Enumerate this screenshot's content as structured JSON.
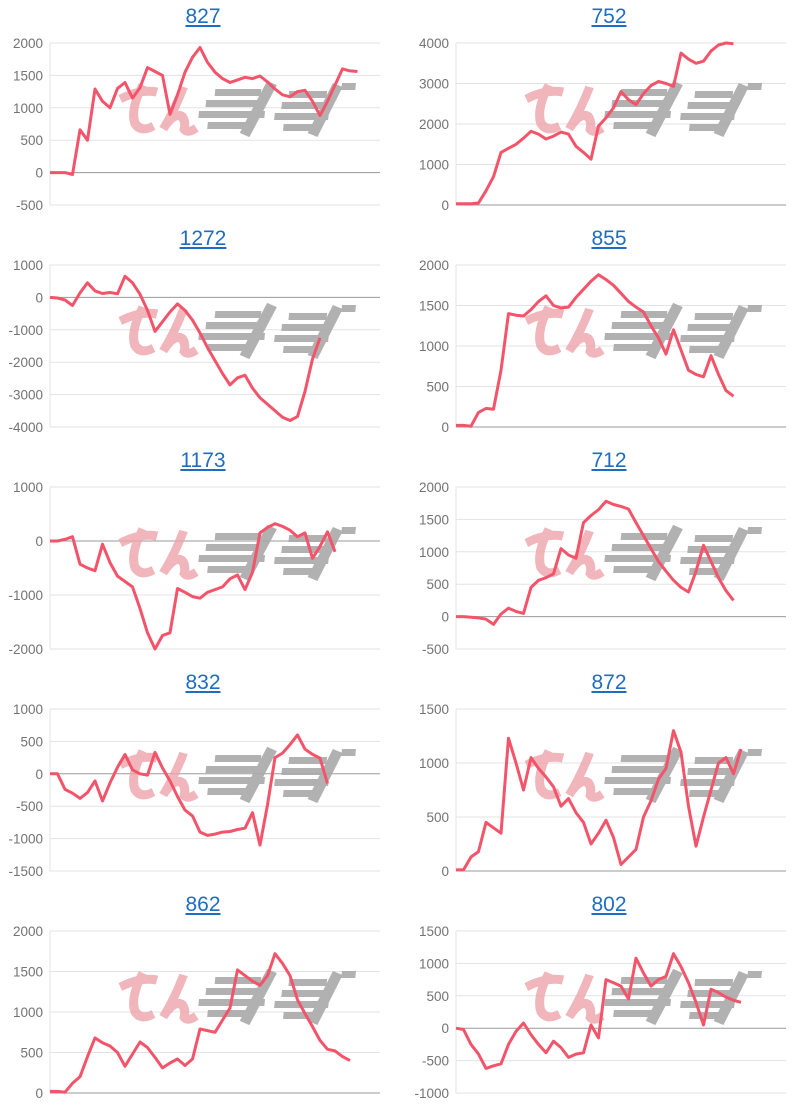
{
  "page": {
    "background": "#ffffff"
  },
  "watermark": {
    "text": "みんレポ",
    "pink_text": "みん",
    "gray_text": "レポ"
  },
  "colors": {
    "series_line": "#f4546a",
    "grid": "#e3e3e3",
    "zero_baseline": "#9a9a9a",
    "axis_label": "#737373",
    "title_link": "#1e6dc2",
    "watermark_pink": "#eda4ac",
    "watermark_gray": "#a9a9a9"
  },
  "chart_defaults": {
    "type": "line",
    "grid": true,
    "legend": "none",
    "x_axis_labels": "none"
  },
  "chart_data": [
    {
      "type": "line",
      "title": "827",
      "ylim": [
        -500,
        2000
      ],
      "yticks": [
        2000,
        1500,
        1000,
        500,
        0,
        -500
      ],
      "values": [
        0,
        0,
        0,
        -30,
        660,
        500,
        1290,
        1100,
        1000,
        1300,
        1390,
        1150,
        1310,
        1620,
        1560,
        1500,
        900,
        1200,
        1550,
        1780,
        1930,
        1700,
        1550,
        1450,
        1390,
        1430,
        1470,
        1450,
        1490,
        1400,
        1290,
        1200,
        1170,
        1250,
        1270,
        1100,
        880,
        1100,
        1350,
        1600,
        1570,
        1560
      ]
    },
    {
      "type": "line",
      "title": "752",
      "ylim": [
        0,
        4000
      ],
      "yticks": [
        4000,
        3000,
        2000,
        1000,
        0
      ],
      "values": [
        30,
        30,
        30,
        50,
        350,
        700,
        1300,
        1400,
        1500,
        1650,
        1820,
        1750,
        1630,
        1700,
        1800,
        1750,
        1450,
        1300,
        1130,
        1950,
        2150,
        2400,
        2800,
        2600,
        2480,
        2750,
        2950,
        3050,
        3000,
        2930,
        3750,
        3600,
        3500,
        3550,
        3800,
        3950,
        4000,
        3980
      ]
    },
    {
      "type": "line",
      "title": "1272",
      "ylim": [
        -4000,
        1000
      ],
      "yticks": [
        1000,
        0,
        -1000,
        -2000,
        -3000,
        -4000
      ],
      "values": [
        0,
        -20,
        -80,
        -250,
        140,
        450,
        200,
        120,
        150,
        110,
        650,
        450,
        100,
        -400,
        -1050,
        -750,
        -450,
        -200,
        -400,
        -700,
        -1100,
        -1550,
        -1950,
        -2350,
        -2700,
        -2480,
        -2400,
        -2800,
        -3100,
        -3300,
        -3500,
        -3700,
        -3800,
        -3680,
        -2900,
        -1900,
        -1250
      ]
    },
    {
      "type": "line",
      "title": "855",
      "ylim": [
        0,
        2000
      ],
      "yticks": [
        2000,
        1500,
        1000,
        500,
        0
      ],
      "values": [
        20,
        20,
        10,
        180,
        230,
        220,
        700,
        1400,
        1380,
        1370,
        1450,
        1550,
        1620,
        1500,
        1470,
        1480,
        1600,
        1700,
        1800,
        1880,
        1820,
        1750,
        1650,
        1550,
        1480,
        1420,
        1250,
        1100,
        900,
        1200,
        950,
        700,
        650,
        620,
        880,
        650,
        450,
        380
      ]
    },
    {
      "type": "line",
      "title": "1173",
      "ylim": [
        -2000,
        1000
      ],
      "yticks": [
        1000,
        0,
        -1000,
        -2000
      ],
      "values": [
        0,
        0,
        30,
        80,
        -430,
        -500,
        -550,
        -60,
        -400,
        -650,
        -750,
        -850,
        -1250,
        -1700,
        -2000,
        -1750,
        -1700,
        -880,
        -950,
        -1030,
        -1060,
        -950,
        -900,
        -850,
        -700,
        -630,
        -900,
        -580,
        150,
        250,
        320,
        270,
        200,
        80,
        150,
        -320,
        -100,
        170,
        -200
      ]
    },
    {
      "type": "line",
      "title": "712",
      "ylim": [
        -500,
        2000
      ],
      "yticks": [
        2000,
        1500,
        1000,
        500,
        0,
        -500
      ],
      "values": [
        0,
        0,
        -10,
        -20,
        -40,
        -120,
        40,
        130,
        80,
        50,
        450,
        560,
        600,
        660,
        1050,
        950,
        900,
        1450,
        1560,
        1650,
        1780,
        1730,
        1700,
        1660,
        1450,
        1250,
        1050,
        850,
        700,
        560,
        450,
        380,
        700,
        1100,
        850,
        600,
        400,
        250
      ]
    },
    {
      "type": "line",
      "title": "832",
      "ylim": [
        -1500,
        1000
      ],
      "yticks": [
        1000,
        500,
        0,
        -500,
        -1000,
        -1500
      ],
      "values": [
        0,
        0,
        -240,
        -300,
        -380,
        -290,
        -110,
        -420,
        -140,
        100,
        300,
        60,
        0,
        -20,
        330,
        90,
        -110,
        -350,
        -560,
        -650,
        -900,
        -950,
        -930,
        -900,
        -890,
        -860,
        -840,
        -600,
        -1100,
        -480,
        250,
        320,
        450,
        600,
        380,
        300,
        240,
        -150
      ]
    },
    {
      "type": "line",
      "title": "872",
      "ylim": [
        0,
        1500
      ],
      "yticks": [
        1500,
        1000,
        500,
        0
      ],
      "values": [
        10,
        10,
        130,
        180,
        450,
        400,
        350,
        1230,
        1000,
        750,
        1050,
        950,
        870,
        780,
        600,
        670,
        540,
        450,
        250,
        350,
        470,
        310,
        60,
        130,
        200,
        500,
        650,
        850,
        950,
        1300,
        1100,
        600,
        230,
        500,
        750,
        1000,
        1050,
        900,
        1130
      ]
    },
    {
      "type": "line",
      "title": "862",
      "ylim": [
        0,
        2000
      ],
      "yticks": [
        2000,
        1500,
        1000,
        500,
        0
      ],
      "values": [
        20,
        20,
        10,
        120,
        200,
        450,
        680,
        620,
        580,
        500,
        330,
        480,
        630,
        560,
        440,
        310,
        370,
        420,
        340,
        420,
        790,
        770,
        750,
        900,
        1050,
        1520,
        1450,
        1380,
        1330,
        1450,
        1720,
        1600,
        1450,
        1150,
        980,
        820,
        650,
        540,
        520,
        450,
        400
      ]
    },
    {
      "type": "line",
      "title": "802",
      "ylim": [
        -1000,
        1500
      ],
      "yticks": [
        1500,
        1000,
        500,
        0,
        -500,
        -1000
      ],
      "values": [
        0,
        -20,
        -250,
        -400,
        -620,
        -580,
        -550,
        -250,
        -50,
        80,
        -100,
        -250,
        -380,
        -200,
        -300,
        -450,
        -400,
        -380,
        50,
        -150,
        750,
        700,
        650,
        450,
        1080,
        850,
        650,
        750,
        800,
        1150,
        950,
        700,
        400,
        50,
        600,
        550,
        480,
        430,
        400
      ]
    }
  ]
}
